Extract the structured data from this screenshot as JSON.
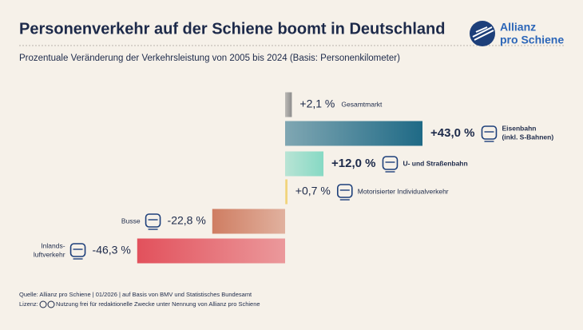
{
  "chart_data": {
    "type": "bar",
    "orientation": "horizontal",
    "title": "Personenverkehr auf der Schiene boomt in Deutschland",
    "subtitle": "Prozentuale Veränderung der Verkehrsleistung von 2005 bis 2024 (Basis: Personenkilometer)",
    "logo": [
      "Allianz",
      "pro Schiene"
    ],
    "categories": [
      "Gesamtmarkt",
      "Eisenbahn\n(inkl. S-Bahnen)",
      "U- und Straßenbahn",
      "Motorisierter Individualverkehr",
      "Busse",
      "Inlands-\nluftverkehr"
    ],
    "values": [
      2.1,
      43.0,
      12.0,
      0.7,
      -22.8,
      -46.3
    ],
    "value_labels": [
      "+2,1 %",
      "+43,0 %",
      "+12,0 %",
      "+0,7 %",
      "-22,8 %",
      "-46,3 %"
    ],
    "colors": [
      "#8c8c8c",
      "#1f6a86",
      "#86d9c4",
      "#f0cc5e",
      "#cf7d62",
      "#e2515c"
    ],
    "xlim": [
      -50,
      50
    ],
    "source": "Quelle: Allianz pro Schiene | 01/2026 | auf Basis von BMV und Statistisches Bundesamt",
    "license_label": "Lizenz:",
    "license": "Nutzung frei für redaktionelle Zwecke unter Nennung von Allianz pro Schiene"
  }
}
